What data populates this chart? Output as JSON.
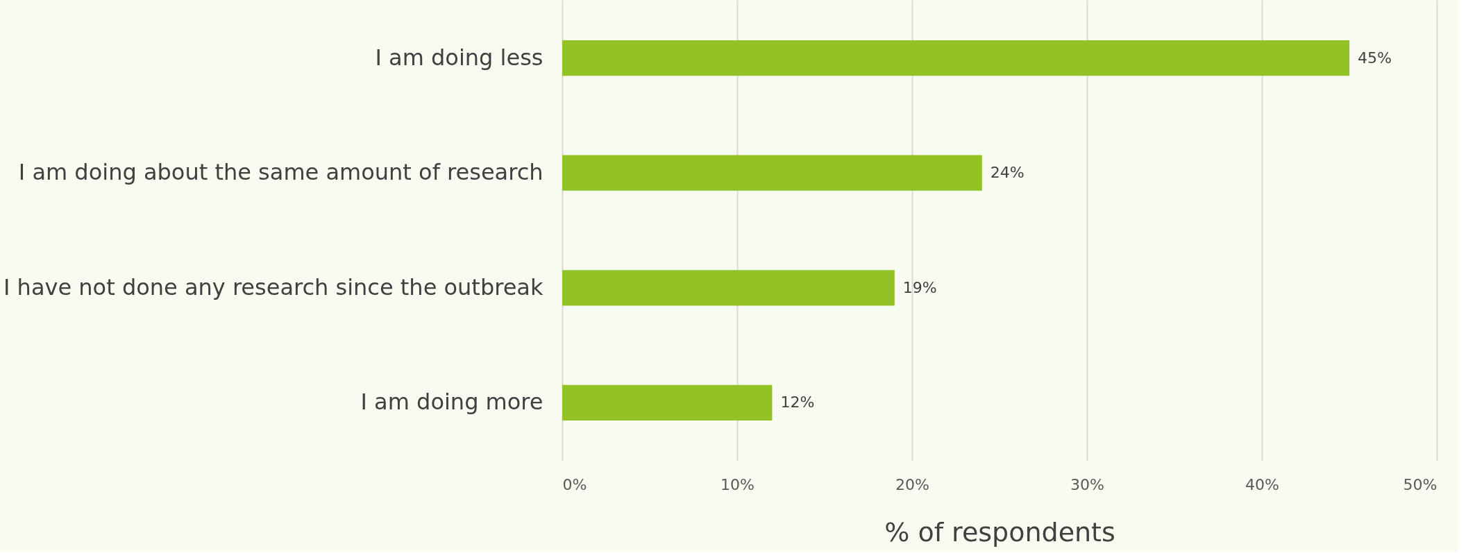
{
  "chart_data": {
    "type": "bar",
    "orientation": "horizontal",
    "categories": [
      "I am doing less",
      "I am doing about the same amount of research",
      "I have not done any research since the outbreak",
      "I am doing more"
    ],
    "values": [
      45,
      24,
      19,
      12
    ],
    "color": "#92c225",
    "value_labels": [
      "45%",
      "24%",
      "19%",
      "12%"
    ],
    "xlabel": "% of respondents",
    "xlim": [
      0,
      50
    ],
    "xticks": [
      {
        "value": 0,
        "label": "0%"
      },
      {
        "value": 10,
        "label": "10%"
      },
      {
        "value": 20,
        "label": "20%"
      },
      {
        "value": 30,
        "label": "30%"
      },
      {
        "value": 40,
        "label": "40%"
      },
      {
        "value": 50,
        "label": "50%"
      }
    ],
    "grid": "x"
  }
}
